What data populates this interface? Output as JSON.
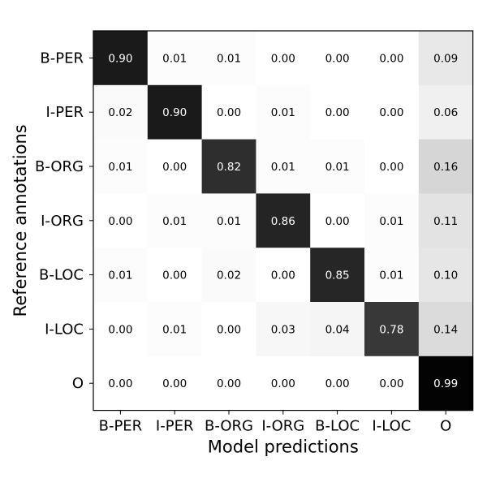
{
  "chart_data": {
    "type": "heatmap",
    "xlabel": "Model predictions",
    "ylabel": "Reference annotations",
    "x_categories": [
      "B-PER",
      "I-PER",
      "B-ORG",
      "I-ORG",
      "B-LOC",
      "I-LOC",
      "O"
    ],
    "y_categories": [
      "B-PER",
      "I-PER",
      "B-ORG",
      "I-ORG",
      "B-LOC",
      "I-LOC",
      "O"
    ],
    "values": [
      [
        0.9,
        0.01,
        0.01,
        0.0,
        0.0,
        0.0,
        0.09
      ],
      [
        0.02,
        0.9,
        0.0,
        0.01,
        0.0,
        0.0,
        0.06
      ],
      [
        0.01,
        0.0,
        0.82,
        0.01,
        0.01,
        0.0,
        0.16
      ],
      [
        0.0,
        0.01,
        0.01,
        0.86,
        0.0,
        0.01,
        0.11
      ],
      [
        0.01,
        0.0,
        0.02,
        0.0,
        0.85,
        0.01,
        0.1
      ],
      [
        0.0,
        0.01,
        0.0,
        0.03,
        0.04,
        0.78,
        0.14
      ],
      [
        0.0,
        0.0,
        0.0,
        0.0,
        0.0,
        0.0,
        0.99
      ]
    ],
    "value_range": [
      0,
      1
    ],
    "colormap": "Greys",
    "value_format_decimals": 2,
    "grid": false,
    "legend": "none"
  }
}
